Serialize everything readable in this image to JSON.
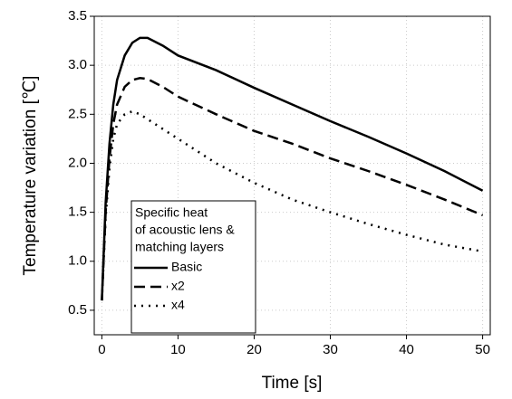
{
  "chart_data": {
    "type": "line",
    "x_label": "Time [s]",
    "y_label": "Temperature variation [℃]",
    "x": [
      0,
      0.5,
      1,
      1.5,
      2,
      3,
      4,
      5,
      6,
      8,
      10,
      15,
      20,
      25,
      30,
      35,
      40,
      45,
      50
    ],
    "series": [
      {
        "name": "Basic",
        "color": "#000000",
        "dash": "solid",
        "values": [
          0.6,
          1.6,
          2.2,
          2.6,
          2.85,
          3.1,
          3.23,
          3.28,
          3.28,
          3.2,
          3.1,
          2.95,
          2.77,
          2.6,
          2.43,
          2.27,
          2.1,
          1.92,
          1.72
        ]
      },
      {
        "name": "x2",
        "color": "#000000",
        "dash": "dashed",
        "values": [
          0.6,
          1.5,
          2.05,
          2.4,
          2.6,
          2.78,
          2.85,
          2.87,
          2.86,
          2.78,
          2.68,
          2.5,
          2.33,
          2.2,
          2.05,
          1.92,
          1.78,
          1.63,
          1.47
        ]
      },
      {
        "name": "x4",
        "color": "#000000",
        "dash": "dotted",
        "values": [
          0.6,
          1.45,
          1.95,
          2.25,
          2.4,
          2.5,
          2.53,
          2.5,
          2.45,
          2.35,
          2.25,
          2.0,
          1.8,
          1.63,
          1.5,
          1.38,
          1.27,
          1.17,
          1.1
        ]
      }
    ],
    "legend_title": [
      "Specific heat",
      "of acoustic lens &",
      "matching layers"
    ],
    "xlim": [
      -1,
      51
    ],
    "xticks": [
      0,
      10,
      20,
      30,
      40,
      50
    ],
    "ylim": [
      0.25,
      3.5
    ],
    "yticks": [
      0.5,
      {
        "value": 1,
        "label": "1.0"
      },
      1.5,
      {
        "value": 2,
        "label": "2.0"
      },
      2.5,
      {
        "value": 3,
        "label": "3.0"
      },
      3.5
    ],
    "grid": true
  }
}
